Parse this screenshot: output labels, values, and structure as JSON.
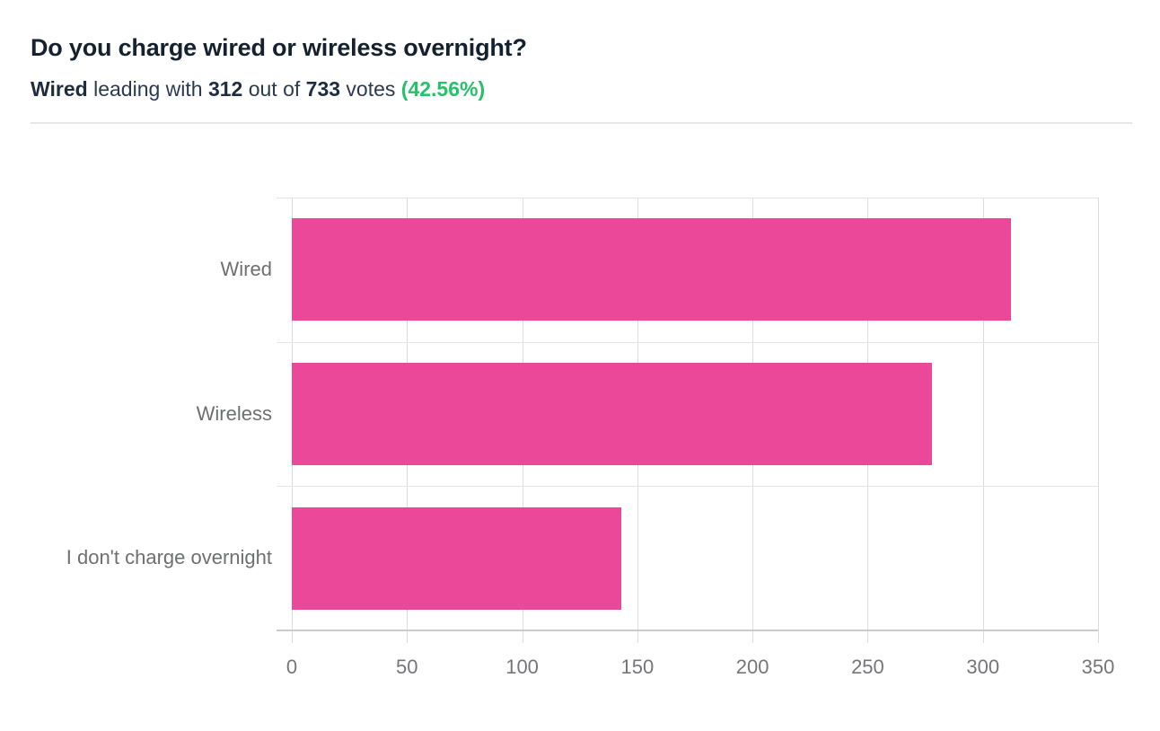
{
  "header": {
    "title": "Do you charge wired or wireless overnight?",
    "subtitle": {
      "leader": "Wired",
      "text1": " leading with ",
      "leader_votes": "312",
      "text2": " out of ",
      "total_votes": "733",
      "text3": " votes ",
      "percent": "(42.56%)"
    }
  },
  "colors": {
    "bar_pink": "#ec4899",
    "percent_green": "#26c169",
    "title_text": "#16212f",
    "label_gray": "#6e6f73"
  },
  "chart_data": {
    "type": "bar",
    "orientation": "horizontal",
    "title": "Do you charge wired or wireless overnight?",
    "categories": [
      "Wired",
      "Wireless",
      "I don't charge overnight"
    ],
    "values": [
      312,
      278,
      143
    ],
    "total_votes": 733,
    "leader": {
      "name": "Wired",
      "votes": 312,
      "percent": "42.56%"
    },
    "xlim": [
      0,
      350
    ],
    "xticks": [
      "0",
      "50",
      "100",
      "150",
      "200",
      "250",
      "300",
      "350"
    ],
    "xlabel": "",
    "ylabel": "",
    "grid": true,
    "legend": false
  }
}
